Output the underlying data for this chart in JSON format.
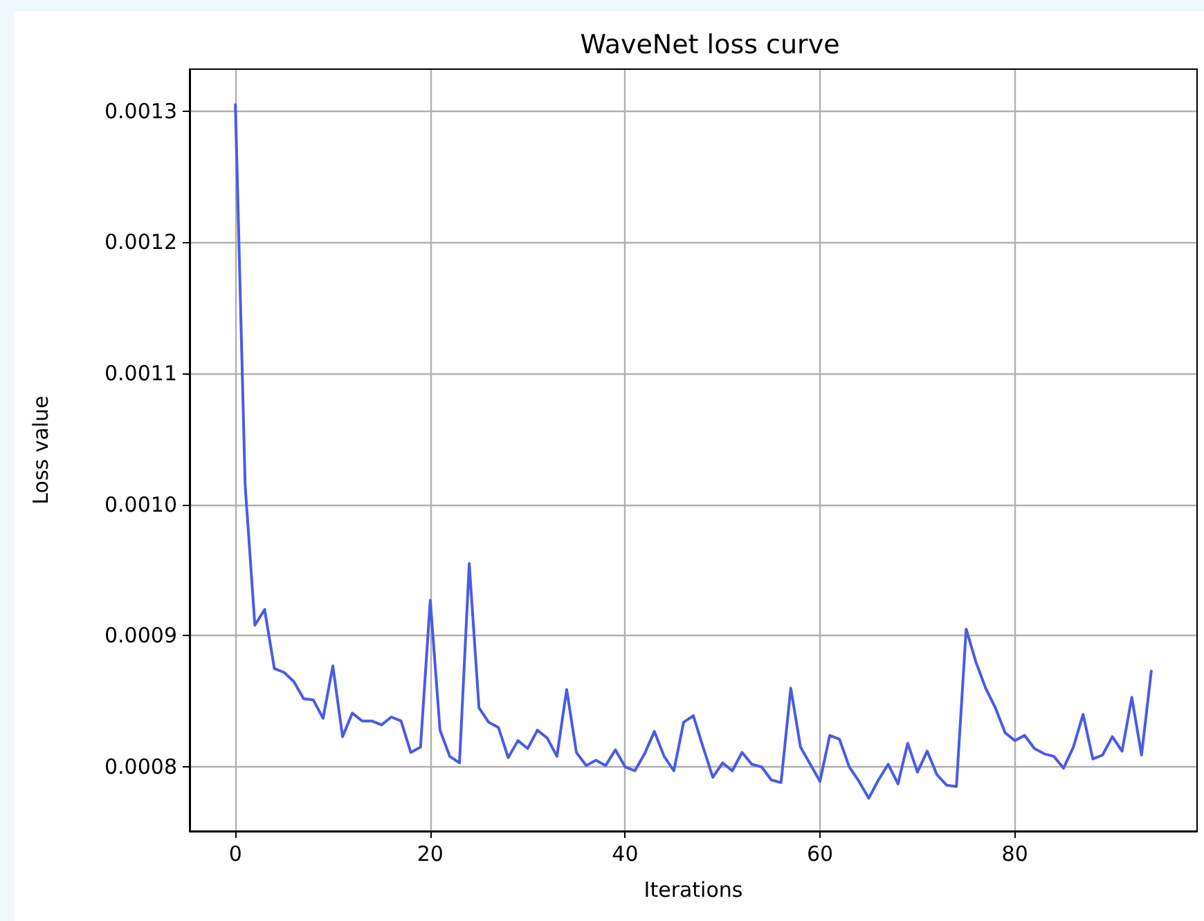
{
  "chart_data": {
    "type": "line",
    "title": "WaveNet loss curve",
    "xlabel": "Iterations",
    "ylabel": "Loss value",
    "x": [
      0,
      1,
      2,
      3,
      4,
      5,
      6,
      7,
      8,
      9,
      10,
      11,
      12,
      13,
      14,
      15,
      16,
      17,
      18,
      19,
      20,
      21,
      22,
      23,
      24,
      25,
      26,
      27,
      28,
      29,
      30,
      31,
      32,
      33,
      34,
      35,
      36,
      37,
      38,
      39,
      40,
      41,
      42,
      43,
      44,
      45,
      46,
      47,
      48,
      49,
      50,
      51,
      52,
      53,
      54,
      55,
      56,
      57,
      58,
      59,
      60,
      61,
      62,
      63,
      64,
      65,
      66,
      67,
      68,
      69,
      70,
      71,
      72,
      73,
      74,
      75,
      76,
      77,
      78,
      79,
      80,
      81,
      82,
      83,
      84,
      85,
      86,
      87,
      88,
      89,
      90,
      91,
      92,
      93,
      94
    ],
    "series": [
      {
        "color": "#4a5be8",
        "values": [
          0.001305,
          0.001015,
          0.000908,
          0.00092,
          0.000875,
          0.000872,
          0.000865,
          0.000852,
          0.000851,
          0.000837,
          0.000877,
          0.000823,
          0.000841,
          0.000835,
          0.000835,
          0.000832,
          0.000838,
          0.000835,
          0.000811,
          0.000815,
          0.000927,
          0.000828,
          0.000808,
          0.000803,
          0.000955,
          0.000845,
          0.000834,
          0.00083,
          0.000807,
          0.00082,
          0.000814,
          0.000828,
          0.000822,
          0.000808,
          0.000859,
          0.000811,
          0.000801,
          0.000805,
          0.000801,
          0.000813,
          0.0008,
          0.000797,
          0.00081,
          0.000827,
          0.000808,
          0.000797,
          0.000834,
          0.000839,
          0.000815,
          0.000792,
          0.000803,
          0.000797,
          0.000811,
          0.000802,
          0.0008,
          0.00079,
          0.000788,
          0.00086,
          0.000815,
          0.000802,
          0.000789,
          0.000824,
          0.000821,
          0.0008,
          0.000789,
          0.000776,
          0.00079,
          0.000802,
          0.000787,
          0.000818,
          0.000796,
          0.000812,
          0.000794,
          0.000786,
          0.000785,
          0.000905,
          0.00088,
          0.00086,
          0.000845,
          0.000826,
          0.00082,
          0.000824,
          0.000814,
          0.00081,
          0.000808,
          0.000799,
          0.000815,
          0.00084,
          0.000806,
          0.000809,
          0.000823,
          0.000812,
          0.000853,
          0.000809,
          0.000873
        ]
      }
    ],
    "xlim": [
      -4.7,
      98.7
    ],
    "xticks": [
      0,
      20,
      40,
      60,
      80
    ],
    "ylim": [
      0.000751,
      0.001332
    ],
    "yticks": [
      0.0008,
      0.0009,
      {
        "value": 0.001,
        "label": "0.0010"
      },
      0.0011,
      0.0012,
      0.0013
    ],
    "grid": true,
    "marker": "none",
    "line_style": "solid"
  }
}
